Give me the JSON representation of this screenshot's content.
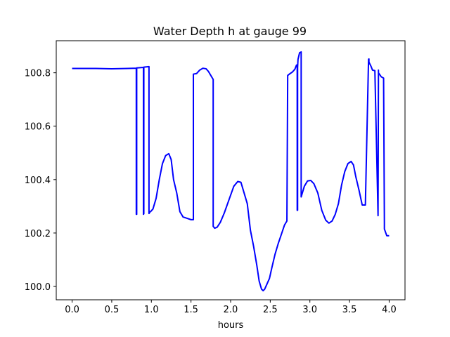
{
  "chart_data": {
    "type": "line",
    "title": "Water Depth h at gauge 99",
    "xlabel": "hours",
    "ylabel": "",
    "xlim": [
      -0.2,
      4.2
    ],
    "ylim": [
      99.95,
      100.92
    ],
    "xticks": [
      0.0,
      0.5,
      1.0,
      1.5,
      2.0,
      2.5,
      3.0,
      3.5,
      4.0
    ],
    "xtick_labels": [
      "0.0",
      "0.5",
      "1.0",
      "1.5",
      "2.0",
      "2.5",
      "3.0",
      "3.5",
      "4.0"
    ],
    "yticks": [
      100.0,
      100.2,
      100.4,
      100.6,
      100.8
    ],
    "ytick_labels": [
      "100.0",
      "100.2",
      "100.4",
      "100.6",
      "100.8"
    ],
    "grid": false,
    "series": [
      {
        "color": "#0000ff",
        "x": [
          0.0,
          0.3,
          0.5,
          0.7,
          0.81,
          0.81,
          0.815,
          0.815,
          0.9,
          0.9,
          0.905,
          0.905,
          0.97,
          0.97,
          0.975,
          0.975,
          0.99,
          1.02,
          1.06,
          1.1,
          1.14,
          1.18,
          1.22,
          1.25,
          1.28,
          1.32,
          1.36,
          1.4,
          1.45,
          1.5,
          1.53,
          1.53,
          1.57,
          1.61,
          1.65,
          1.69,
          1.72,
          1.76,
          1.78,
          1.78,
          1.8,
          1.83,
          1.87,
          1.92,
          1.98,
          2.04,
          2.09,
          2.13,
          2.17,
          2.21,
          2.25,
          2.29,
          2.33,
          2.36,
          2.39,
          2.41,
          2.43,
          2.46,
          2.49,
          2.52,
          2.56,
          2.6,
          2.64,
          2.68,
          2.71,
          2.72,
          2.75,
          2.78,
          2.81,
          2.83,
          2.84,
          2.84,
          2.845,
          2.845,
          2.85,
          2.87,
          2.89,
          2.89,
          2.9,
          2.93,
          2.97,
          3.01,
          3.05,
          3.1,
          3.15,
          3.2,
          3.24,
          3.28,
          3.32,
          3.36,
          3.4,
          3.44,
          3.48,
          3.52,
          3.55,
          3.58,
          3.62,
          3.66,
          3.7,
          3.74,
          3.745,
          3.745,
          3.77,
          3.79,
          3.82,
          3.86,
          3.86,
          3.865,
          3.865,
          3.9,
          3.93,
          3.94,
          3.94,
          3.97,
          4.0
        ],
        "y": [
          100.816,
          100.816,
          100.815,
          100.816,
          100.817,
          100.27,
          100.27,
          100.818,
          100.82,
          100.27,
          100.272,
          100.821,
          100.823,
          100.273,
          100.275,
          100.278,
          100.28,
          100.29,
          100.33,
          100.4,
          100.46,
          100.49,
          100.497,
          100.475,
          100.4,
          100.35,
          100.28,
          100.26,
          100.255,
          100.25,
          100.25,
          100.795,
          100.797,
          100.81,
          100.817,
          100.815,
          100.805,
          100.785,
          100.775,
          100.225,
          100.218,
          100.222,
          100.24,
          100.275,
          100.325,
          100.375,
          100.393,
          100.39,
          100.35,
          100.31,
          100.21,
          100.15,
          100.08,
          100.02,
          99.99,
          99.984,
          99.99,
          100.01,
          100.03,
          100.07,
          100.12,
          100.16,
          100.195,
          100.23,
          100.245,
          100.79,
          100.797,
          100.803,
          100.813,
          100.828,
          100.83,
          100.285,
          100.285,
          100.82,
          100.85,
          100.875,
          100.878,
          100.335,
          100.345,
          100.375,
          100.395,
          100.397,
          100.385,
          100.35,
          100.285,
          100.248,
          100.237,
          100.245,
          100.27,
          100.31,
          100.38,
          100.43,
          100.46,
          100.468,
          100.455,
          100.41,
          100.36,
          100.305,
          100.305,
          100.85,
          100.852,
          100.84,
          100.825,
          100.81,
          100.808,
          100.265,
          100.265,
          100.81,
          100.8,
          100.785,
          100.78,
          100.24,
          100.215,
          100.19,
          100.19
        ]
      }
    ]
  }
}
